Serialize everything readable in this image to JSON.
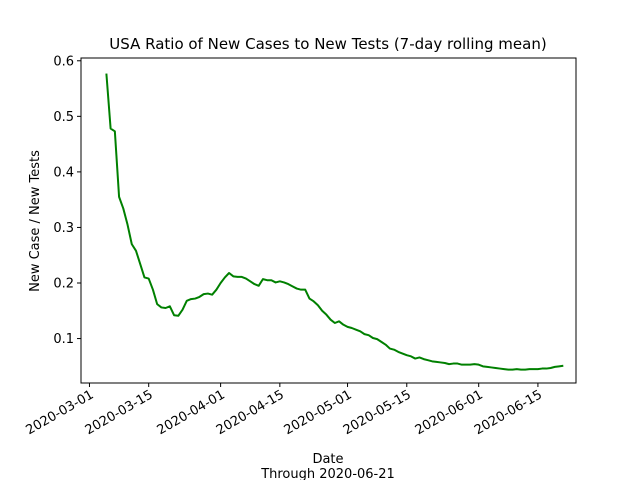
{
  "chart_data": {
    "type": "line",
    "title": "USA Ratio of New Cases to New Tests (7-day rolling mean)",
    "xlabel": "Date",
    "xlabel_sub": "Through 2020-06-21",
    "ylabel": "New Case / New Tests",
    "line_color": "#008000",
    "grid": false,
    "legend": "none",
    "xlim": [
      "2020-02-28",
      "2020-06-24"
    ],
    "ylim": [
      0.02,
      0.605
    ],
    "x_ticks": [
      "2020-03-01",
      "2020-03-15",
      "2020-04-01",
      "2020-04-15",
      "2020-05-01",
      "2020-05-15",
      "2020-06-01",
      "2020-06-15"
    ],
    "y_ticks": [
      0.1,
      0.2,
      0.3,
      0.4,
      0.5,
      0.6
    ],
    "y_tick_labels": [
      "0.1",
      "0.2",
      "0.3",
      "0.4",
      "0.5",
      "0.6"
    ],
    "series": [
      {
        "x": [
          "2020-03-05",
          "2020-03-06",
          "2020-03-07",
          "2020-03-08",
          "2020-03-09",
          "2020-03-10",
          "2020-03-11",
          "2020-03-12",
          "2020-03-13",
          "2020-03-14",
          "2020-03-15",
          "2020-03-16",
          "2020-03-17",
          "2020-03-18",
          "2020-03-19",
          "2020-03-20",
          "2020-03-21",
          "2020-03-22",
          "2020-03-23",
          "2020-03-24",
          "2020-03-25",
          "2020-03-26",
          "2020-03-27",
          "2020-03-28",
          "2020-03-29",
          "2020-03-30",
          "2020-03-31",
          "2020-04-01",
          "2020-04-02",
          "2020-04-03",
          "2020-04-04",
          "2020-04-05",
          "2020-04-06",
          "2020-04-07",
          "2020-04-08",
          "2020-04-09",
          "2020-04-10",
          "2020-04-11",
          "2020-04-12",
          "2020-04-13",
          "2020-04-14",
          "2020-04-15",
          "2020-04-16",
          "2020-04-17",
          "2020-04-18",
          "2020-04-19",
          "2020-04-20",
          "2020-04-21",
          "2020-04-22",
          "2020-04-23",
          "2020-04-24",
          "2020-04-25",
          "2020-04-26",
          "2020-04-27",
          "2020-04-28",
          "2020-04-29",
          "2020-04-30",
          "2020-05-01",
          "2020-05-02",
          "2020-05-03",
          "2020-05-04",
          "2020-05-05",
          "2020-05-06",
          "2020-05-07",
          "2020-05-08",
          "2020-05-09",
          "2020-05-10",
          "2020-05-11",
          "2020-05-12",
          "2020-05-13",
          "2020-05-14",
          "2020-05-15",
          "2020-05-16",
          "2020-05-17",
          "2020-05-18",
          "2020-05-19",
          "2020-05-20",
          "2020-05-21",
          "2020-05-22",
          "2020-05-23",
          "2020-05-24",
          "2020-05-25",
          "2020-05-26",
          "2020-05-27",
          "2020-05-28",
          "2020-05-29",
          "2020-05-30",
          "2020-05-31",
          "2020-06-01",
          "2020-06-02",
          "2020-06-03",
          "2020-06-04",
          "2020-06-05",
          "2020-06-06",
          "2020-06-07",
          "2020-06-08",
          "2020-06-09",
          "2020-06-10",
          "2020-06-11",
          "2020-06-12",
          "2020-06-13",
          "2020-06-14",
          "2020-06-15",
          "2020-06-16",
          "2020-06-17",
          "2020-06-18",
          "2020-06-19",
          "2020-06-20",
          "2020-06-21"
        ],
        "y": [
          0.577,
          0.478,
          0.473,
          0.355,
          0.334,
          0.305,
          0.27,
          0.258,
          0.234,
          0.21,
          0.208,
          0.188,
          0.162,
          0.156,
          0.155,
          0.158,
          0.142,
          0.141,
          0.152,
          0.168,
          0.171,
          0.172,
          0.175,
          0.18,
          0.181,
          0.179,
          0.188,
          0.2,
          0.21,
          0.218,
          0.212,
          0.211,
          0.211,
          0.208,
          0.203,
          0.198,
          0.195,
          0.207,
          0.205,
          0.205,
          0.201,
          0.203,
          0.201,
          0.198,
          0.194,
          0.19,
          0.188,
          0.188,
          0.172,
          0.167,
          0.16,
          0.15,
          0.143,
          0.134,
          0.128,
          0.131,
          0.125,
          0.121,
          0.119,
          0.116,
          0.113,
          0.108,
          0.106,
          0.101,
          0.099,
          0.094,
          0.089,
          0.082,
          0.08,
          0.076,
          0.073,
          0.07,
          0.068,
          0.064,
          0.066,
          0.063,
          0.061,
          0.059,
          0.058,
          0.057,
          0.056,
          0.054,
          0.055,
          0.055,
          0.053,
          0.053,
          0.053,
          0.054,
          0.053,
          0.05,
          0.049,
          0.048,
          0.047,
          0.046,
          0.045,
          0.044,
          0.044,
          0.045,
          0.044,
          0.044,
          0.045,
          0.045,
          0.045,
          0.046,
          0.046,
          0.047,
          0.049,
          0.05,
          0.051
        ]
      }
    ]
  }
}
